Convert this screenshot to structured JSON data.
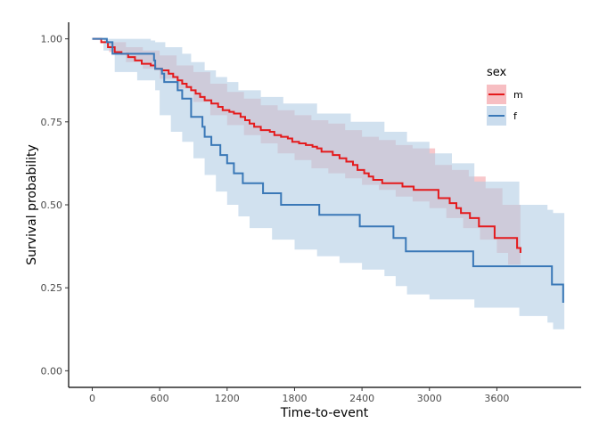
{
  "chart_data": {
    "type": "line",
    "subtype": "kaplan-meier survival curve with confidence bands",
    "xlabel": "Time-to-event",
    "ylabel": "Survival probability",
    "xlim": [
      -210,
      4350
    ],
    "ylim": [
      -0.05,
      1.05
    ],
    "x_ticks": [
      0,
      600,
      1200,
      1800,
      2400,
      3000,
      3600
    ],
    "y_ticks": [
      0.0,
      0.25,
      0.5,
      0.75,
      1.0
    ],
    "y_tick_labels": [
      "0.00",
      "0.25",
      "0.50",
      "0.75",
      "1.00"
    ],
    "grid": false,
    "legend": {
      "title": "sex",
      "position": "right-top"
    },
    "series": [
      {
        "name": "m",
        "line_color": "#e41a1c",
        "band_color": "#f4a3a8",
        "steps": [
          [
            0,
            1.0
          ],
          [
            80,
            0.99
          ],
          [
            140,
            0.975
          ],
          [
            200,
            0.96
          ],
          [
            260,
            0.955
          ],
          [
            320,
            0.945
          ],
          [
            380,
            0.935
          ],
          [
            440,
            0.925
          ],
          [
            520,
            0.92
          ],
          [
            560,
            0.91
          ],
          [
            620,
            0.905
          ],
          [
            680,
            0.895
          ],
          [
            720,
            0.885
          ],
          [
            760,
            0.875
          ],
          [
            800,
            0.865
          ],
          [
            840,
            0.855
          ],
          [
            880,
            0.845
          ],
          [
            920,
            0.835
          ],
          [
            960,
            0.825
          ],
          [
            1000,
            0.815
          ],
          [
            1060,
            0.805
          ],
          [
            1120,
            0.795
          ],
          [
            1160,
            0.785
          ],
          [
            1220,
            0.78
          ],
          [
            1260,
            0.775
          ],
          [
            1320,
            0.765
          ],
          [
            1360,
            0.755
          ],
          [
            1400,
            0.745
          ],
          [
            1440,
            0.735
          ],
          [
            1500,
            0.725
          ],
          [
            1580,
            0.72
          ],
          [
            1620,
            0.71
          ],
          [
            1680,
            0.705
          ],
          [
            1740,
            0.7
          ],
          [
            1780,
            0.69
          ],
          [
            1840,
            0.685
          ],
          [
            1900,
            0.68
          ],
          [
            1960,
            0.675
          ],
          [
            2000,
            0.67
          ],
          [
            2040,
            0.66
          ],
          [
            2140,
            0.65
          ],
          [
            2200,
            0.64
          ],
          [
            2260,
            0.63
          ],
          [
            2320,
            0.62
          ],
          [
            2360,
            0.605
          ],
          [
            2420,
            0.595
          ],
          [
            2460,
            0.585
          ],
          [
            2500,
            0.575
          ],
          [
            2580,
            0.565
          ],
          [
            2760,
            0.555
          ],
          [
            2860,
            0.545
          ],
          [
            3080,
            0.52
          ],
          [
            3180,
            0.505
          ],
          [
            3240,
            0.49
          ],
          [
            3280,
            0.475
          ],
          [
            3360,
            0.46
          ],
          [
            3440,
            0.435
          ],
          [
            3580,
            0.4
          ],
          [
            3780,
            0.37
          ],
          [
            3810,
            0.355
          ]
        ],
        "ci_upper": [
          [
            0,
            1.0
          ],
          [
            150,
            0.99
          ],
          [
            300,
            0.975
          ],
          [
            450,
            0.965
          ],
          [
            600,
            0.95
          ],
          [
            750,
            0.92
          ],
          [
            900,
            0.9
          ],
          [
            1050,
            0.865
          ],
          [
            1200,
            0.84
          ],
          [
            1350,
            0.82
          ],
          [
            1500,
            0.8
          ],
          [
            1650,
            0.785
          ],
          [
            1800,
            0.77
          ],
          [
            1950,
            0.755
          ],
          [
            2100,
            0.745
          ],
          [
            2250,
            0.725
          ],
          [
            2400,
            0.705
          ],
          [
            2550,
            0.695
          ],
          [
            2700,
            0.68
          ],
          [
            2850,
            0.67
          ],
          [
            3050,
            0.645
          ],
          [
            3050,
            0.62
          ],
          [
            3200,
            0.605
          ],
          [
            3350,
            0.585
          ],
          [
            3500,
            0.55
          ],
          [
            3650,
            0.5
          ],
          [
            3810,
            0.49
          ]
        ],
        "ci_lower": [
          [
            0,
            1.0
          ],
          [
            150,
            0.96
          ],
          [
            300,
            0.93
          ],
          [
            450,
            0.91
          ],
          [
            600,
            0.88
          ],
          [
            750,
            0.85
          ],
          [
            900,
            0.81
          ],
          [
            1050,
            0.77
          ],
          [
            1200,
            0.74
          ],
          [
            1350,
            0.71
          ],
          [
            1500,
            0.685
          ],
          [
            1650,
            0.655
          ],
          [
            1800,
            0.635
          ],
          [
            1950,
            0.61
          ],
          [
            2100,
            0.595
          ],
          [
            2250,
            0.58
          ],
          [
            2400,
            0.56
          ],
          [
            2550,
            0.545
          ],
          [
            2700,
            0.525
          ],
          [
            2850,
            0.51
          ],
          [
            3000,
            0.49
          ],
          [
            3150,
            0.46
          ],
          [
            3300,
            0.43
          ],
          [
            3450,
            0.395
          ],
          [
            3600,
            0.355
          ],
          [
            3700,
            0.32
          ],
          [
            3810,
            0.28
          ]
        ]
      },
      {
        "name": "f",
        "line_color": "#3a78b7",
        "band_color": "#b3cde5",
        "steps": [
          [
            0,
            1.0
          ],
          [
            130,
            0.99
          ],
          [
            180,
            0.955
          ],
          [
            550,
            0.935
          ],
          [
            560,
            0.91
          ],
          [
            620,
            0.895
          ],
          [
            640,
            0.87
          ],
          [
            760,
            0.845
          ],
          [
            800,
            0.82
          ],
          [
            880,
            0.795
          ],
          [
            880,
            0.765
          ],
          [
            980,
            0.735
          ],
          [
            1000,
            0.705
          ],
          [
            1060,
            0.68
          ],
          [
            1140,
            0.65
          ],
          [
            1200,
            0.625
          ],
          [
            1260,
            0.595
          ],
          [
            1340,
            0.565
          ],
          [
            1520,
            0.535
          ],
          [
            1680,
            0.5
          ],
          [
            2020,
            0.47
          ],
          [
            2380,
            0.435
          ],
          [
            2680,
            0.4
          ],
          [
            2790,
            0.36
          ],
          [
            3390,
            0.315
          ],
          [
            4090,
            0.26
          ],
          [
            4190,
            0.205
          ]
        ],
        "ci_upper": [
          [
            0,
            1.0
          ],
          [
            400,
            1.0
          ],
          [
            520,
            0.995
          ],
          [
            560,
            0.99
          ],
          [
            650,
            0.975
          ],
          [
            800,
            0.955
          ],
          [
            880,
            0.93
          ],
          [
            1000,
            0.905
          ],
          [
            1100,
            0.885
          ],
          [
            1200,
            0.87
          ],
          [
            1300,
            0.845
          ],
          [
            1500,
            0.825
          ],
          [
            1700,
            0.805
          ],
          [
            2000,
            0.775
          ],
          [
            2300,
            0.75
          ],
          [
            2600,
            0.72
          ],
          [
            2800,
            0.69
          ],
          [
            3000,
            0.655
          ],
          [
            3200,
            0.625
          ],
          [
            3400,
            0.57
          ],
          [
            3800,
            0.5
          ],
          [
            4050,
            0.485
          ],
          [
            4100,
            0.475
          ],
          [
            4200,
            0.42
          ]
        ],
        "ci_lower": [
          [
            0,
            1.0
          ],
          [
            100,
            0.965
          ],
          [
            200,
            0.9
          ],
          [
            400,
            0.875
          ],
          [
            560,
            0.845
          ],
          [
            600,
            0.77
          ],
          [
            700,
            0.72
          ],
          [
            800,
            0.69
          ],
          [
            900,
            0.64
          ],
          [
            1000,
            0.59
          ],
          [
            1100,
            0.54
          ],
          [
            1200,
            0.5
          ],
          [
            1300,
            0.465
          ],
          [
            1400,
            0.43
          ],
          [
            1600,
            0.395
          ],
          [
            1800,
            0.365
          ],
          [
            2000,
            0.345
          ],
          [
            2200,
            0.325
          ],
          [
            2400,
            0.305
          ],
          [
            2600,
            0.285
          ],
          [
            2700,
            0.255
          ],
          [
            2800,
            0.23
          ],
          [
            3000,
            0.215
          ],
          [
            3400,
            0.19
          ],
          [
            3800,
            0.165
          ],
          [
            4050,
            0.145
          ],
          [
            4100,
            0.125
          ],
          [
            4200,
            0.09
          ]
        ]
      }
    ]
  }
}
